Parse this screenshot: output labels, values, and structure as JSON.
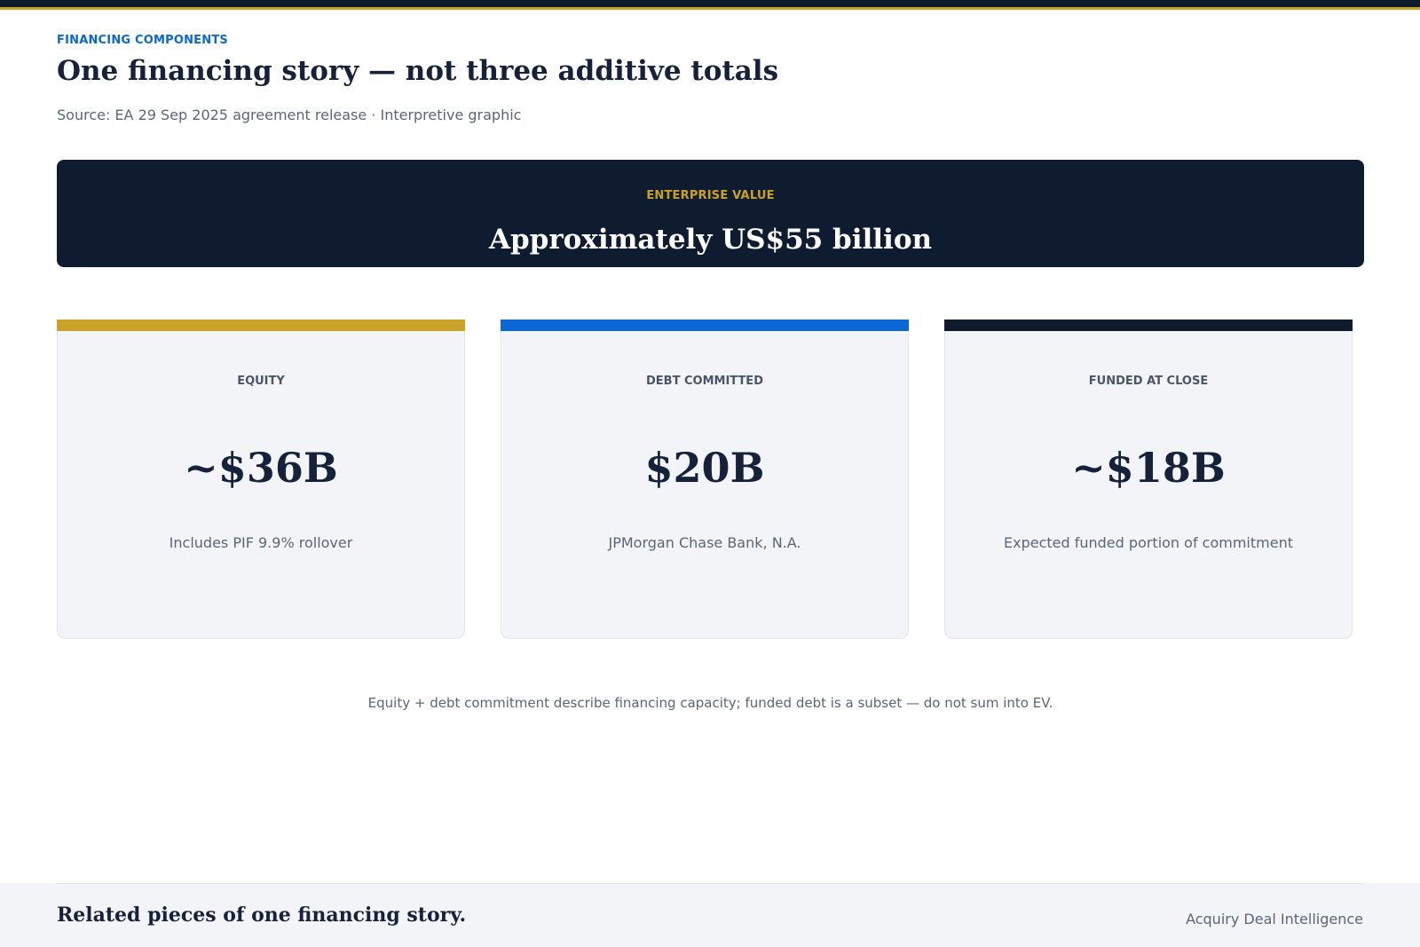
{
  "header": {
    "eyebrow": "FINANCING COMPONENTS",
    "title": "One financing story — not three additive totals",
    "source": "Source: EA 29 Sep 2025 agreement release · Interpretive graphic"
  },
  "enterprise_value": {
    "label": "ENTERPRISE VALUE",
    "value": "Approximately US$55 billion"
  },
  "cards": [
    {
      "label": "EQUITY",
      "value": "~$36B",
      "note": "Includes PIF 9.9% rollover",
      "accent_color": "#c9a227"
    },
    {
      "label": "DEBT COMMITTED",
      "value": "$20B",
      "note": "JPMorgan Chase Bank, N.A.",
      "accent_color": "#0b66d6"
    },
    {
      "label": "FUNDED AT CLOSE",
      "value": "~$18B",
      "note": "Expected funded portion of commitment",
      "accent_color": "#0f1b2d"
    }
  ],
  "footnote": "Equity + debt commitment describe financing capacity; funded debt is a subset — do not sum into EV.",
  "footer": {
    "tagline": "Related pieces of one financing story.",
    "brand": "Acquiry Deal Intelligence"
  },
  "colors": {
    "navy": "#0f1b2d",
    "gold": "#c9a227",
    "blue": "#0b66d6"
  }
}
